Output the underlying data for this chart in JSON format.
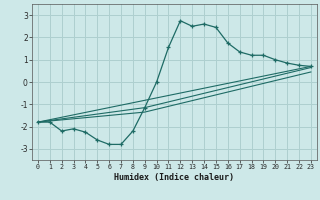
{
  "title": "",
  "xlabel": "Humidex (Indice chaleur)",
  "ylabel": "",
  "xlim": [
    -0.5,
    23.5
  ],
  "ylim": [
    -3.5,
    3.5
  ],
  "xticks": [
    0,
    1,
    2,
    3,
    4,
    5,
    6,
    7,
    8,
    9,
    10,
    11,
    12,
    13,
    14,
    15,
    16,
    17,
    18,
    19,
    20,
    21,
    22,
    23
  ],
  "yticks": [
    -3,
    -2,
    -1,
    0,
    1,
    2,
    3
  ],
  "bg_color": "#cde8e8",
  "line_color": "#1e6b65",
  "grid_color": "#aecfcf",
  "line1_x": [
    0,
    1,
    2,
    3,
    4,
    5,
    6,
    7,
    8,
    9,
    10,
    11,
    12,
    13,
    14,
    15,
    16,
    17,
    18,
    19,
    20,
    21,
    22,
    23
  ],
  "line1_y": [
    -1.8,
    -1.8,
    -2.2,
    -2.1,
    -2.25,
    -2.6,
    -2.8,
    -2.8,
    -2.2,
    -1.15,
    0.0,
    1.55,
    2.75,
    2.5,
    2.6,
    2.45,
    1.75,
    1.35,
    1.2,
    1.2,
    1.0,
    0.85,
    0.75,
    0.7
  ],
  "line2_x": [
    0,
    23
  ],
  "line2_y": [
    -1.8,
    0.7
  ],
  "line3_x": [
    0,
    9,
    23
  ],
  "line3_y": [
    -1.8,
    -1.15,
    0.65
  ],
  "line4_x": [
    0,
    9,
    23
  ],
  "line4_y": [
    -1.8,
    -1.35,
    0.45
  ]
}
